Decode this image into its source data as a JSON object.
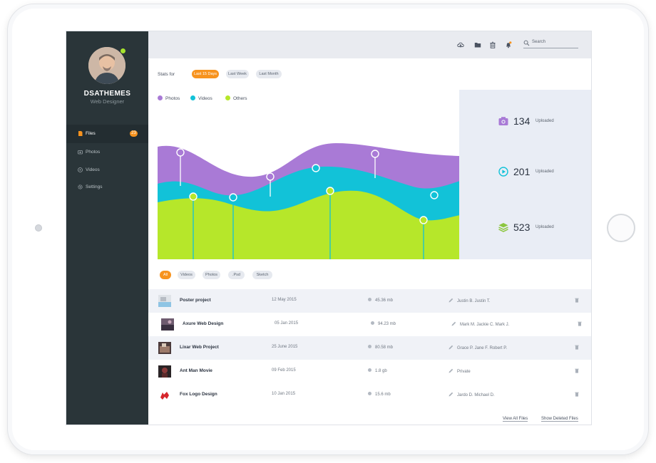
{
  "colors": {
    "accent": "#f7931e",
    "photos": "#a97ad6",
    "videos": "#12c2d8",
    "others": "#b6e72a",
    "online": "#a6e22e"
  },
  "user": {
    "name": "DSATHEMES",
    "role": "Web Designer"
  },
  "sidebar": {
    "items": [
      {
        "label": "Files",
        "icon": "file-icon",
        "badge": "23",
        "active": true
      },
      {
        "label": "Photos",
        "icon": "camera-icon"
      },
      {
        "label": "Videos",
        "icon": "play-icon"
      },
      {
        "label": "Settings",
        "icon": "gear-icon"
      }
    ]
  },
  "topbar": {
    "icons": [
      "cloud-upload-icon",
      "folder-icon",
      "trash-icon",
      "bell-icon"
    ],
    "search_placeholder": "Search"
  },
  "filters": {
    "label": "Stats for",
    "options": [
      "Last 15 Days",
      "Last Week",
      "Last Month"
    ],
    "selected": "Last 15 Days"
  },
  "chart_data": {
    "type": "area",
    "series": [
      {
        "name": "Photos",
        "color": "#a97ad6"
      },
      {
        "name": "Videos",
        "color": "#12c2d8"
      },
      {
        "name": "Others",
        "color": "#b6e72a"
      }
    ]
  },
  "stats": [
    {
      "value": "134",
      "label": "Uploaded",
      "icon": "camera-icon",
      "color": "#a97ad6"
    },
    {
      "value": "201",
      "label": "Uploaded",
      "icon": "play-circle-icon",
      "color": "#12c2d8"
    },
    {
      "value": "523",
      "label": "Uploaded",
      "icon": "layers-icon",
      "color": "#8cc63f"
    }
  ],
  "tabs": [
    "All",
    "Videos",
    "Photos",
    ".Psd",
    "Sketch"
  ],
  "files": [
    {
      "name": "Poster project",
      "date": "12 May 2015",
      "size": "45.36 mb",
      "people": "Justin B. Justin T."
    },
    {
      "name": "Axure Web Design",
      "date": "05 Jan 2015",
      "size": "94.23 mb",
      "people": "Mark M. Jackie C. Mark J."
    },
    {
      "name": "Lixar Web Project",
      "date": "25 June 2015",
      "size": "80.58 mb",
      "people": "Grace P. Jane F. Robert P."
    },
    {
      "name": "Ant Man Movie",
      "date": "09 Feb 2015",
      "size": "1.8 gb",
      "people": "Private"
    },
    {
      "name": "Fox Logo Design",
      "date": "10 Jan 2015",
      "size": "15.6 mb",
      "people": "Jardo D. Michael D."
    }
  ],
  "footer": {
    "view_all": "View All Files",
    "show_deleted": "Show Deleted Files"
  }
}
